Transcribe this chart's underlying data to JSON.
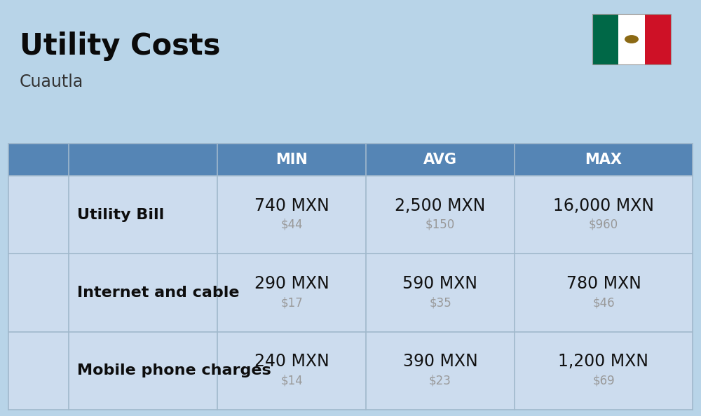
{
  "title": "Utility Costs",
  "subtitle": "Cuautla",
  "background_color": "#b8d4e8",
  "header_color": "#5585b5",
  "header_text_color": "#ffffff",
  "row_color": "#ccdcee",
  "row_divider_color": "#a0b8cc",
  "col_headers": [
    "MIN",
    "AVG",
    "MAX"
  ],
  "rows": [
    {
      "label": "Utility Bill",
      "min_mxn": "740 MXN",
      "min_usd": "$44",
      "avg_mxn": "2,500 MXN",
      "avg_usd": "$150",
      "max_mxn": "16,000 MXN",
      "max_usd": "$960"
    },
    {
      "label": "Internet and cable",
      "min_mxn": "290 MXN",
      "min_usd": "$17",
      "avg_mxn": "590 MXN",
      "avg_usd": "$35",
      "max_mxn": "780 MXN",
      "max_usd": "$46"
    },
    {
      "label": "Mobile phone charges",
      "min_mxn": "240 MXN",
      "min_usd": "$14",
      "avg_mxn": "390 MXN",
      "avg_usd": "$23",
      "max_mxn": "1,200 MXN",
      "max_usd": "$69"
    }
  ],
  "title_fontsize": 30,
  "subtitle_fontsize": 17,
  "header_fontsize": 15,
  "cell_mxn_fontsize": 17,
  "cell_usd_fontsize": 12,
  "label_fontsize": 16,
  "flag_green": "#006847",
  "flag_white": "#FFFFFF",
  "flag_red": "#CE1126"
}
